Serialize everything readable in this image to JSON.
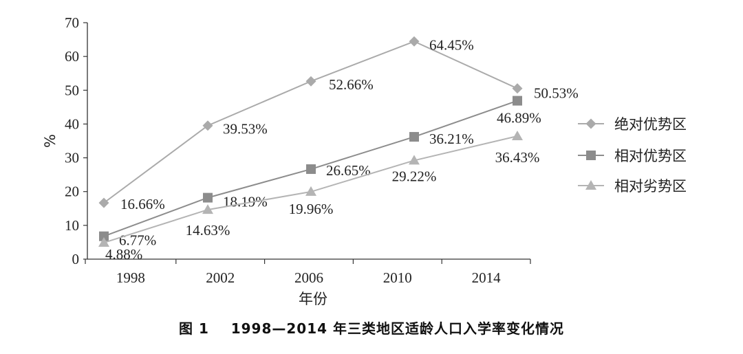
{
  "caption": "图 1    1998—2014 年三类地区适龄人口入学率变化情况",
  "chart_data": {
    "type": "line",
    "title": "",
    "xlabel": "年份",
    "ylabel": "%",
    "categories": [
      "1998",
      "2002",
      "2006",
      "2010",
      "2014"
    ],
    "ylim": [
      0,
      70
    ],
    "yticks": [
      0,
      10,
      20,
      30,
      40,
      50,
      60,
      70
    ],
    "grid": false,
    "legend_position": "right",
    "series": [
      {
        "name": "绝对优势区",
        "marker": "diamond",
        "color": "#aaaaaa",
        "values": [
          16.66,
          39.53,
          52.66,
          64.45,
          50.53
        ],
        "labels": [
          "16.66%",
          "39.53%",
          "52.66%",
          "64.45%",
          "50.53%"
        ]
      },
      {
        "name": "相对优势区",
        "marker": "square",
        "color": "#8c8c8c",
        "values": [
          6.77,
          18.19,
          26.65,
          36.21,
          46.89
        ],
        "labels": [
          "6.77%",
          "18.19%",
          "26.65%",
          "36.21%",
          "46.89%"
        ]
      },
      {
        "name": "相对劣势区",
        "marker": "triangle",
        "color": "#b4b4b4",
        "values": [
          4.88,
          14.63,
          19.96,
          29.22,
          36.43
        ],
        "labels": [
          "4.88%",
          "14.63%",
          "19.96%",
          "29.22%",
          "36.43%"
        ]
      }
    ]
  }
}
